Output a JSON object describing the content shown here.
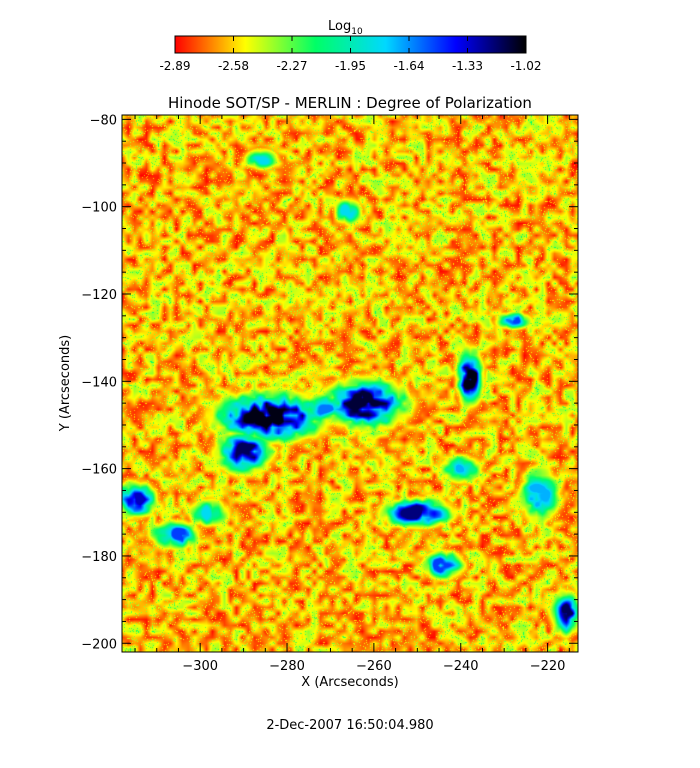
{
  "chart_data": {
    "type": "heatmap",
    "title": "Hinode SOT/SP - MERLIN : Degree of Polarization",
    "xlabel": "X (Arcseconds)",
    "ylabel": "Y (Arcseconds)",
    "xlim": [
      -318,
      -213
    ],
    "ylim": [
      -202,
      -79
    ],
    "x_ticks": [
      -300,
      -280,
      -260,
      -240,
      -220
    ],
    "y_ticks": [
      -80,
      -100,
      -120,
      -140,
      -160,
      -180,
      -200
    ],
    "colorbar": {
      "label_base": "Log",
      "label_sub": "10",
      "ticks": [
        "-2.89",
        "-2.58",
        "-2.27",
        "-1.95",
        "-1.64",
        "-1.33",
        "-1.02"
      ],
      "range": [
        -2.89,
        -1.02
      ]
    },
    "colormap": [
      "#000000",
      "#0000ff",
      "#00d8ff",
      "#00ff66",
      "#ffff00",
      "#ff0000"
    ],
    "background_level": -2.89,
    "features": [
      {
        "x": -284,
        "y": -148,
        "sx": 8,
        "sy": 3.5,
        "peak": -1.05
      },
      {
        "x": -290,
        "y": -156,
        "sx": 4,
        "sy": 3,
        "peak": -1.15
      },
      {
        "x": -262,
        "y": -145,
        "sx": 6,
        "sy": 3.5,
        "peak": -1.1
      },
      {
        "x": -272,
        "y": -146,
        "sx": 3,
        "sy": 2,
        "peak": -1.6
      },
      {
        "x": -238,
        "y": -139,
        "sx": 1.8,
        "sy": 4,
        "peak": -1.05
      },
      {
        "x": -250,
        "y": -170,
        "sx": 5,
        "sy": 2,
        "peak": -1.2
      },
      {
        "x": -228,
        "y": -126,
        "sx": 2.5,
        "sy": 1.2,
        "peak": -1.5
      },
      {
        "x": -315,
        "y": -167,
        "sx": 3,
        "sy": 2.5,
        "peak": -1.3
      },
      {
        "x": -306,
        "y": -175,
        "sx": 3.5,
        "sy": 2,
        "peak": -1.5
      },
      {
        "x": -244,
        "y": -182,
        "sx": 3,
        "sy": 2,
        "peak": -1.5
      },
      {
        "x": -216,
        "y": -193,
        "sx": 2,
        "sy": 3,
        "peak": -1.15
      },
      {
        "x": -222,
        "y": -166,
        "sx": 3,
        "sy": 4,
        "peak": -1.7
      },
      {
        "x": -286,
        "y": -89,
        "sx": 2.5,
        "sy": 1.5,
        "peak": -1.8
      },
      {
        "x": -266,
        "y": -101,
        "sx": 2,
        "sy": 2,
        "peak": -1.8
      },
      {
        "x": -298,
        "y": -170,
        "sx": 3,
        "sy": 2,
        "peak": -1.8
      },
      {
        "x": -240,
        "y": -160,
        "sx": 3,
        "sy": 2,
        "peak": -1.7
      }
    ],
    "grid": false,
    "legend": "colorbar-top"
  },
  "footer_date": "2-Dec-2007 16:50:04.980"
}
